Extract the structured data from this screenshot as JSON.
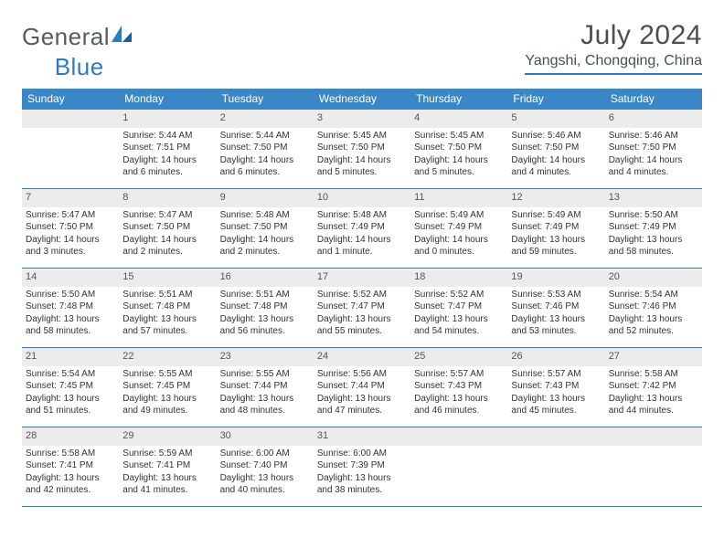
{
  "brand": {
    "part1": "General",
    "part2": "Blue"
  },
  "title": "July 2024",
  "location": "Yangshi, Chongqing, China",
  "colors": {
    "header_blue": "#3a87c8",
    "rule_blue": "#2f7bbf",
    "daynum_bg": "#ececec",
    "text": "#333333",
    "logo_gray": "#555b60"
  },
  "dow": [
    "Sunday",
    "Monday",
    "Tuesday",
    "Wednesday",
    "Thursday",
    "Friday",
    "Saturday"
  ],
  "weeks": [
    [
      {
        "n": "",
        "sr": "",
        "ss": "",
        "dl": ""
      },
      {
        "n": "1",
        "sr": "5:44 AM",
        "ss": "7:51 PM",
        "dl": "14 hours and 6 minutes."
      },
      {
        "n": "2",
        "sr": "5:44 AM",
        "ss": "7:50 PM",
        "dl": "14 hours and 6 minutes."
      },
      {
        "n": "3",
        "sr": "5:45 AM",
        "ss": "7:50 PM",
        "dl": "14 hours and 5 minutes."
      },
      {
        "n": "4",
        "sr": "5:45 AM",
        "ss": "7:50 PM",
        "dl": "14 hours and 5 minutes."
      },
      {
        "n": "5",
        "sr": "5:46 AM",
        "ss": "7:50 PM",
        "dl": "14 hours and 4 minutes."
      },
      {
        "n": "6",
        "sr": "5:46 AM",
        "ss": "7:50 PM",
        "dl": "14 hours and 4 minutes."
      }
    ],
    [
      {
        "n": "7",
        "sr": "5:47 AM",
        "ss": "7:50 PM",
        "dl": "14 hours and 3 minutes."
      },
      {
        "n": "8",
        "sr": "5:47 AM",
        "ss": "7:50 PM",
        "dl": "14 hours and 2 minutes."
      },
      {
        "n": "9",
        "sr": "5:48 AM",
        "ss": "7:50 PM",
        "dl": "14 hours and 2 minutes."
      },
      {
        "n": "10",
        "sr": "5:48 AM",
        "ss": "7:49 PM",
        "dl": "14 hours and 1 minute."
      },
      {
        "n": "11",
        "sr": "5:49 AM",
        "ss": "7:49 PM",
        "dl": "14 hours and 0 minutes."
      },
      {
        "n": "12",
        "sr": "5:49 AM",
        "ss": "7:49 PM",
        "dl": "13 hours and 59 minutes."
      },
      {
        "n": "13",
        "sr": "5:50 AM",
        "ss": "7:49 PM",
        "dl": "13 hours and 58 minutes."
      }
    ],
    [
      {
        "n": "14",
        "sr": "5:50 AM",
        "ss": "7:48 PM",
        "dl": "13 hours and 58 minutes."
      },
      {
        "n": "15",
        "sr": "5:51 AM",
        "ss": "7:48 PM",
        "dl": "13 hours and 57 minutes."
      },
      {
        "n": "16",
        "sr": "5:51 AM",
        "ss": "7:48 PM",
        "dl": "13 hours and 56 minutes."
      },
      {
        "n": "17",
        "sr": "5:52 AM",
        "ss": "7:47 PM",
        "dl": "13 hours and 55 minutes."
      },
      {
        "n": "18",
        "sr": "5:52 AM",
        "ss": "7:47 PM",
        "dl": "13 hours and 54 minutes."
      },
      {
        "n": "19",
        "sr": "5:53 AM",
        "ss": "7:46 PM",
        "dl": "13 hours and 53 minutes."
      },
      {
        "n": "20",
        "sr": "5:54 AM",
        "ss": "7:46 PM",
        "dl": "13 hours and 52 minutes."
      }
    ],
    [
      {
        "n": "21",
        "sr": "5:54 AM",
        "ss": "7:45 PM",
        "dl": "13 hours and 51 minutes."
      },
      {
        "n": "22",
        "sr": "5:55 AM",
        "ss": "7:45 PM",
        "dl": "13 hours and 49 minutes."
      },
      {
        "n": "23",
        "sr": "5:55 AM",
        "ss": "7:44 PM",
        "dl": "13 hours and 48 minutes."
      },
      {
        "n": "24",
        "sr": "5:56 AM",
        "ss": "7:44 PM",
        "dl": "13 hours and 47 minutes."
      },
      {
        "n": "25",
        "sr": "5:57 AM",
        "ss": "7:43 PM",
        "dl": "13 hours and 46 minutes."
      },
      {
        "n": "26",
        "sr": "5:57 AM",
        "ss": "7:43 PM",
        "dl": "13 hours and 45 minutes."
      },
      {
        "n": "27",
        "sr": "5:58 AM",
        "ss": "7:42 PM",
        "dl": "13 hours and 44 minutes."
      }
    ],
    [
      {
        "n": "28",
        "sr": "5:58 AM",
        "ss": "7:41 PM",
        "dl": "13 hours and 42 minutes."
      },
      {
        "n": "29",
        "sr": "5:59 AM",
        "ss": "7:41 PM",
        "dl": "13 hours and 41 minutes."
      },
      {
        "n": "30",
        "sr": "6:00 AM",
        "ss": "7:40 PM",
        "dl": "13 hours and 40 minutes."
      },
      {
        "n": "31",
        "sr": "6:00 AM",
        "ss": "7:39 PM",
        "dl": "13 hours and 38 minutes."
      },
      {
        "n": "",
        "sr": "",
        "ss": "",
        "dl": ""
      },
      {
        "n": "",
        "sr": "",
        "ss": "",
        "dl": ""
      },
      {
        "n": "",
        "sr": "",
        "ss": "",
        "dl": ""
      }
    ]
  ],
  "labels": {
    "sunrise": "Sunrise:",
    "sunset": "Sunset:",
    "daylight": "Daylight:"
  }
}
